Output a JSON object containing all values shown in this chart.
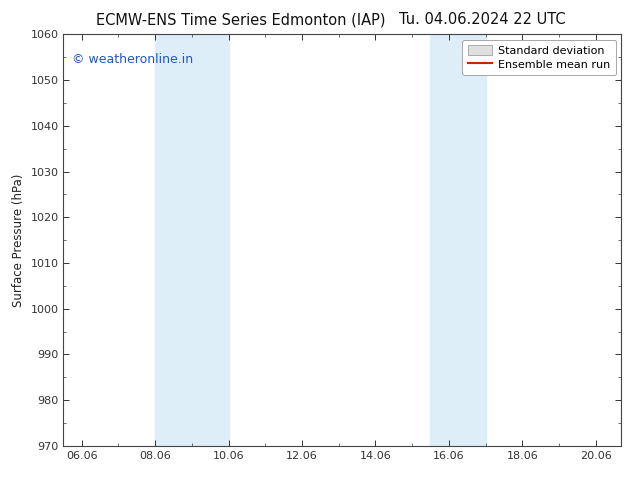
{
  "title_left": "ECMW-ENS Time Series Edmonton (IAP)",
  "title_right": "Tu. 04.06.2024 22 UTC",
  "ylabel": "Surface Pressure (hPa)",
  "ylim": [
    970,
    1060
  ],
  "yticks": [
    970,
    980,
    990,
    1000,
    1010,
    1020,
    1030,
    1040,
    1050,
    1060
  ],
  "xlim_start": 5.5,
  "xlim_end": 20.7,
  "xtick_labels": [
    "06.06",
    "08.06",
    "10.06",
    "12.06",
    "14.06",
    "16.06",
    "18.06",
    "20.06"
  ],
  "xtick_positions": [
    6.0,
    8.0,
    10.0,
    12.0,
    14.0,
    16.0,
    18.0,
    20.0
  ],
  "shaded_regions": [
    {
      "x_start": 8.0,
      "x_end": 10.0
    },
    {
      "x_start": 15.5,
      "x_end": 17.0
    }
  ],
  "shade_color": "#ddeef8",
  "watermark_text": "© weatheronline.in",
  "watermark_color": "#2255cc",
  "legend_std_label": "Standard deviation",
  "legend_mean_label": "Ensemble mean run",
  "legend_std_facecolor": "#e0e0e0",
  "legend_std_edgecolor": "#aaaaaa",
  "legend_mean_color": "#cc2200",
  "bg_color": "#ffffff",
  "spine_color": "#444444",
  "tick_color": "#333333",
  "title_fontsize": 10.5,
  "ylabel_fontsize": 8.5,
  "tick_fontsize": 8,
  "watermark_fontsize": 9,
  "legend_fontsize": 8
}
